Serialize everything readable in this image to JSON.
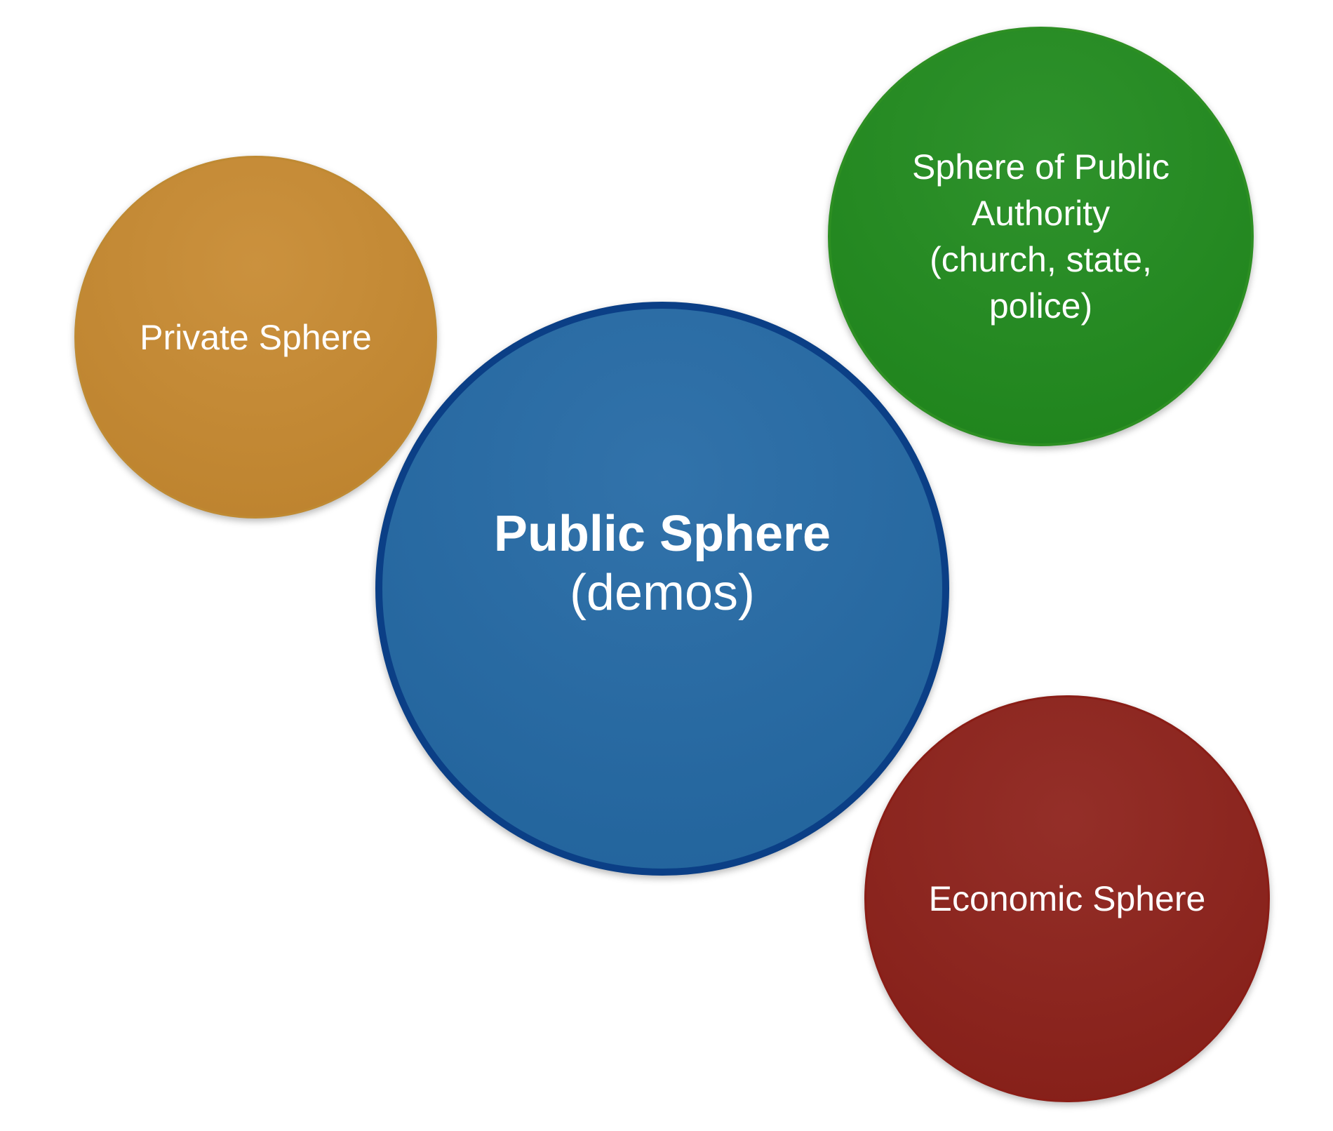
{
  "diagram": {
    "nodes": [
      {
        "id": "private",
        "label": "Private Sphere",
        "color": "#c7892f"
      },
      {
        "id": "authority",
        "label": "Sphere of Public\nAuthority\n(church, state,\npolice)",
        "color": "#1f8a1c"
      },
      {
        "id": "public",
        "title": "Public Sphere",
        "subtitle": "(demos)",
        "color": "#2268a4",
        "border_color": "#0b3f86"
      },
      {
        "id": "economic",
        "label": "Economic Sphere",
        "color": "#8c1f18"
      }
    ]
  }
}
